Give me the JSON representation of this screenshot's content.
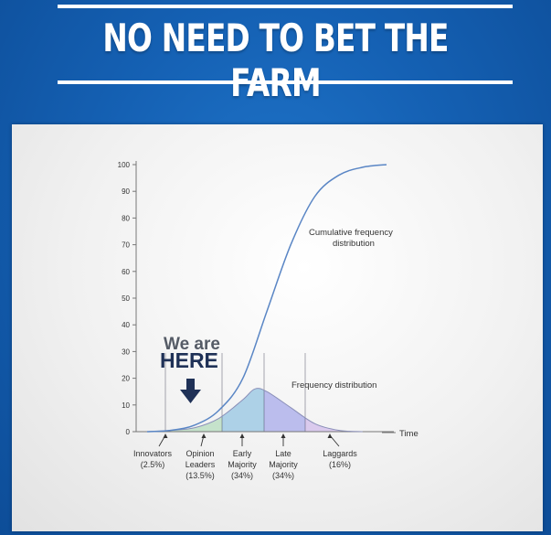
{
  "header": {
    "title": "NO NEED TO BET THE FARM"
  },
  "callout": {
    "line1": "We are",
    "line2": "HERE"
  },
  "colors": {
    "background": "#1561b4",
    "cumulative_curve": "#5a86c5",
    "innovators": "#cfe6b8",
    "opinion_leaders": "#c2e0c8",
    "early_majority": "#a9cfe6",
    "late_majority": "#b7b9ec",
    "laggards": "#d8c7ec",
    "arrow": "#1f3157"
  },
  "chart_data": {
    "type": "area",
    "title": "",
    "xlabel": "Time",
    "ylabel": "",
    "ylim": [
      0,
      100
    ],
    "yticks": [
      "0",
      "10",
      "20",
      "30",
      "40",
      "50",
      "60",
      "70",
      "80",
      "90",
      "100"
    ],
    "grid": false,
    "series": [
      {
        "name": "Cumulative frequency distribution",
        "kind": "line",
        "x": [
          0,
          10,
          20,
          30,
          40,
          50,
          60,
          70,
          80,
          90,
          100
        ],
        "values": [
          0,
          0.5,
          2.5,
          8,
          20,
          45,
          70,
          88,
          96,
          99,
          100
        ]
      },
      {
        "name": "Frequency distribution",
        "kind": "area",
        "x": [
          0,
          10,
          20,
          30,
          40,
          45,
          50,
          60,
          70,
          80,
          90
        ],
        "values": [
          0,
          0.5,
          1.5,
          5,
          12,
          16,
          15,
          9,
          3,
          0.5,
          0
        ]
      }
    ],
    "segments": [
      {
        "label1": "Innovators",
        "label2": "(2.5%)",
        "label3": "",
        "share": 2.5
      },
      {
        "label1": "Opinion",
        "label2": "Leaders",
        "label3": "(13.5%)",
        "share": 13.5
      },
      {
        "label1": "Early",
        "label2": "Majority",
        "label3": "(34%)",
        "share": 34
      },
      {
        "label1": "Late",
        "label2": "Majority",
        "label3": "(34%)",
        "share": 34
      },
      {
        "label1": "Laggards",
        "label2": "(16%)",
        "label3": "",
        "share": 16
      }
    ],
    "annotations": {
      "cumulative_1": "Cumulative frequency",
      "cumulative_2": "distribution",
      "frequency": "Frequency distribution"
    }
  }
}
